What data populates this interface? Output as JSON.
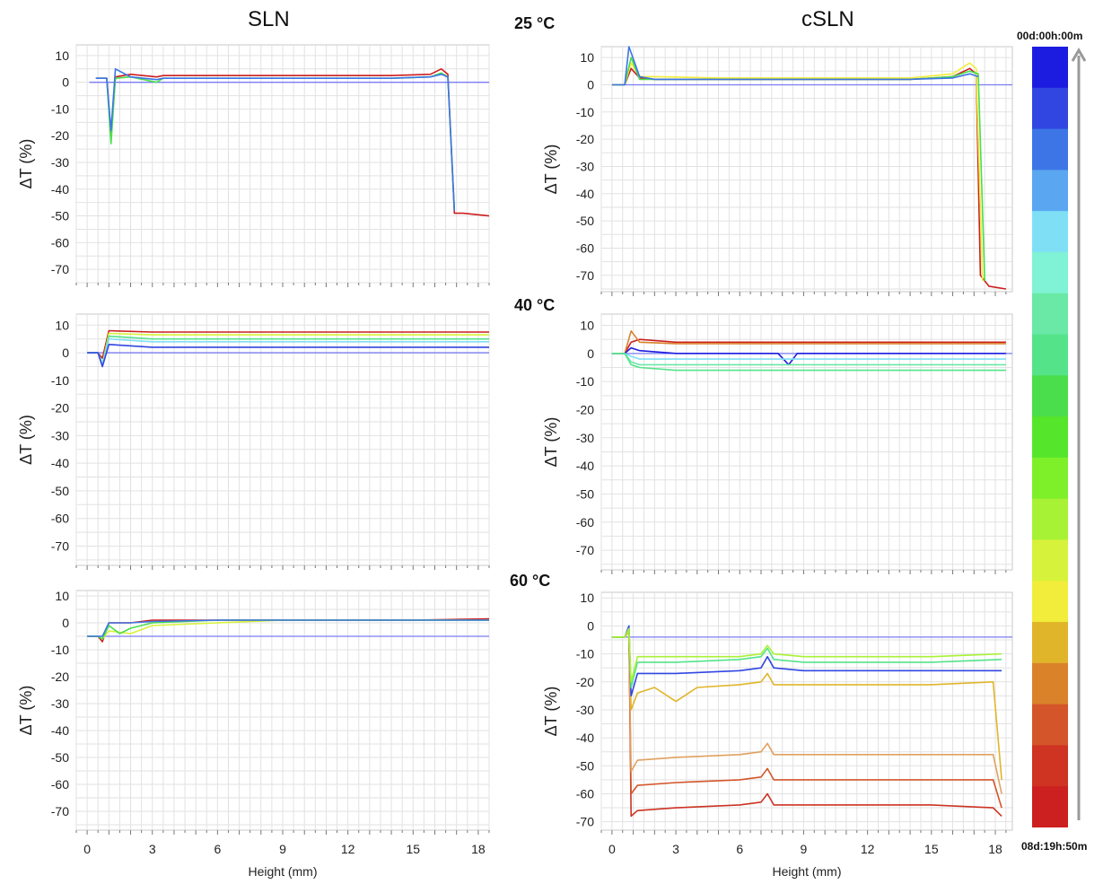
{
  "figure": {
    "column_titles": [
      "SLN",
      "cSLN"
    ],
    "temperatures": [
      "25 °C",
      "40 °C",
      "60 °C"
    ],
    "legend": {
      "top_label": "00d:00h:00m",
      "bottom_label": "08d:19h:50m",
      "colors": [
        "#1c1ce0",
        "#3146e0",
        "#3d75e6",
        "#5aa6f0",
        "#7fe0f5",
        "#80f2d5",
        "#6ae8a6",
        "#55e38a",
        "#4ade4c",
        "#55e62b",
        "#7ef02a",
        "#a8f235",
        "#d7f23a",
        "#f2ec3a",
        "#e0b52a",
        "#d9822a",
        "#d4552a",
        "#cf3322",
        "#cc1f1f"
      ]
    }
  },
  "chart_data": [
    {
      "type": "line",
      "panel": "SLN 25 °C",
      "xlabel": "",
      "ylabel": "ΔT (%)",
      "xlim": [
        -0.5,
        18.5
      ],
      "ylim": [
        -75,
        14
      ],
      "yticks": [
        10,
        0,
        -10,
        -20,
        -30,
        -40,
        -50,
        -60,
        -70
      ],
      "xticks": [],
      "baseline": 0,
      "series": [
        {
          "color": "#cc1f1f",
          "x": [
            0.4,
            0.9,
            1.1,
            1.3,
            2,
            3.2,
            3.5,
            5,
            8,
            11,
            14,
            15.8,
            16.3,
            16.6,
            16.9,
            17.3,
            18.5
          ],
          "y": [
            1.5,
            1.5,
            -20,
            2,
            3,
            2,
            2.5,
            2.5,
            2.5,
            2.5,
            2.5,
            3,
            5,
            3,
            -49,
            -49,
            -50
          ]
        },
        {
          "color": "#4ade4c",
          "x": [
            0.4,
            0.9,
            1.1,
            1.3,
            2,
            3.2,
            3.5,
            5,
            8,
            11,
            14,
            15.8,
            16.3,
            16.6,
            16.9
          ],
          "y": [
            1.5,
            1.5,
            -23,
            1.5,
            2,
            0,
            1.5,
            1.5,
            1.5,
            1.5,
            1.5,
            2,
            3.5,
            2,
            -48
          ]
        },
        {
          "color": "#3d75e6",
          "x": [
            0.4,
            0.9,
            1.1,
            1.3,
            2,
            3.2,
            3.5,
            5,
            8,
            11,
            14,
            15.8,
            16.3,
            16.6,
            16.9
          ],
          "y": [
            1.5,
            1.5,
            -18,
            5,
            2,
            1,
            1.5,
            1.5,
            1.5,
            1.5,
            1.5,
            2,
            3,
            2,
            -48
          ]
        }
      ]
    },
    {
      "type": "line",
      "panel": "cSLN 25 °C",
      "xlabel": "",
      "ylabel": "ΔT (%)",
      "xlim": [
        -0.5,
        18.8
      ],
      "ylim": [
        -76,
        14
      ],
      "yticks": [
        10,
        0,
        -10,
        -20,
        -30,
        -40,
        -50,
        -60,
        -70
      ],
      "xticks": [],
      "baseline": 0,
      "series": [
        {
          "color": "#cc1f1f",
          "x": [
            0,
            0.6,
            0.9,
            1.3,
            2,
            5,
            8,
            11,
            14,
            16,
            16.8,
            17.1,
            17.3,
            17.7,
            18.5
          ],
          "y": [
            0,
            0,
            6,
            2.5,
            2,
            2,
            2,
            2,
            2,
            3,
            6,
            4,
            -70,
            -74,
            -75
          ]
        },
        {
          "color": "#f2ec3a",
          "x": [
            0,
            0.6,
            0.9,
            1.3,
            2,
            5,
            8,
            11,
            14,
            16,
            16.8,
            17.1,
            17.4
          ],
          "y": [
            0,
            0,
            8,
            3,
            3,
            2.5,
            2.5,
            2.5,
            2.5,
            4,
            8,
            6,
            -72
          ]
        },
        {
          "color": "#4ade4c",
          "x": [
            0,
            0.6,
            0.9,
            1.3,
            2,
            5,
            8,
            11,
            14,
            16,
            16.8,
            17.2,
            17.5
          ],
          "y": [
            0,
            0,
            10,
            2,
            2,
            2,
            2,
            2,
            2,
            3,
            5,
            4,
            -72
          ]
        },
        {
          "color": "#3d75e6",
          "x": [
            0,
            0.6,
            0.8,
            1.3,
            2,
            5,
            8,
            11,
            14,
            16,
            16.8,
            17.2
          ],
          "y": [
            0,
            0,
            14,
            3,
            2,
            2,
            2,
            2,
            2,
            2.5,
            4,
            3
          ]
        }
      ]
    },
    {
      "type": "line",
      "panel": "SLN 40 °C",
      "xlabel": "",
      "ylabel": "ΔT (%)",
      "xlim": [
        -0.5,
        18.5
      ],
      "ylim": [
        -77,
        14
      ],
      "yticks": [
        10,
        0,
        -10,
        -20,
        -30,
        -40,
        -50,
        -60,
        -70
      ],
      "xticks": [],
      "baseline": 0,
      "series": [
        {
          "color": "#cc1f1f",
          "x": [
            0,
            0.5,
            0.7,
            1,
            3,
            6,
            9,
            12,
            15,
            18.5
          ],
          "y": [
            0,
            0,
            -2,
            8,
            7.5,
            7.5,
            7.5,
            7.5,
            7.5,
            7.5
          ]
        },
        {
          "color": "#d7f23a",
          "x": [
            0,
            0.5,
            0.7,
            1,
            3,
            6,
            9,
            12,
            15,
            18.5
          ],
          "y": [
            0,
            0,
            -4,
            7,
            6.5,
            6.5,
            6.5,
            6.5,
            6.5,
            6.5
          ]
        },
        {
          "color": "#55e38a",
          "x": [
            0,
            0.5,
            0.7,
            1,
            3,
            6,
            9,
            12,
            15,
            18.5
          ],
          "y": [
            0,
            0,
            -4,
            6,
            5,
            5,
            5,
            5,
            5,
            5
          ]
        },
        {
          "color": "#7fe0f5",
          "x": [
            0,
            0.5,
            0.7,
            1,
            3,
            6,
            9,
            12,
            15,
            18.5
          ],
          "y": [
            0,
            0,
            -4,
            5,
            4,
            4,
            4,
            4,
            4,
            4
          ]
        },
        {
          "color": "#3146e0",
          "x": [
            0,
            0.5,
            0.7,
            1,
            3,
            6,
            9,
            12,
            15,
            18.5
          ],
          "y": [
            0,
            0,
            -5,
            3,
            2,
            2,
            2,
            2,
            2,
            2
          ]
        }
      ]
    },
    {
      "type": "line",
      "panel": "cSLN 40 °C",
      "xlabel": "",
      "ylabel": "ΔT (%)",
      "xlim": [
        -0.5,
        18.8
      ],
      "ylim": [
        -77,
        14
      ],
      "yticks": [
        10,
        0,
        -10,
        -20,
        -30,
        -40,
        -50,
        -60,
        -70
      ],
      "xticks": [],
      "baseline": 0,
      "series": [
        {
          "color": "#cc1f1f",
          "x": [
            0,
            0.6,
            0.9,
            1.3,
            3,
            6,
            9,
            12,
            15,
            18.5
          ],
          "y": [
            0,
            0,
            4,
            5,
            4,
            4,
            4,
            4,
            4,
            4
          ]
        },
        {
          "color": "#d9822a",
          "x": [
            0,
            0.6,
            0.9,
            1.3,
            3,
            6,
            9,
            12,
            15,
            18.5
          ],
          "y": [
            0,
            0,
            8,
            4,
            3.5,
            3.5,
            3.5,
            3.5,
            3.5,
            3.5
          ]
        },
        {
          "color": "#1c1ce0",
          "x": [
            0,
            0.6,
            0.9,
            1.3,
            3,
            6,
            7.8,
            8.3,
            8.7,
            9,
            12,
            15,
            18.5
          ],
          "y": [
            0,
            0,
            2,
            1,
            0,
            0,
            0,
            -4,
            0,
            0,
            0,
            0,
            0
          ]
        },
        {
          "color": "#7fe0f5",
          "x": [
            0,
            0.6,
            0.9,
            1.3,
            3,
            6,
            9,
            12,
            15,
            18.5
          ],
          "y": [
            0,
            0,
            -1,
            -2,
            -2,
            -2,
            -2,
            -2,
            -2,
            -2
          ]
        },
        {
          "color": "#6ae8a6",
          "x": [
            0,
            0.6,
            0.9,
            1.3,
            3,
            6,
            9,
            12,
            15,
            18.5
          ],
          "y": [
            0,
            0,
            -3,
            -4,
            -4,
            -4,
            -4,
            -4,
            -4,
            -4
          ]
        },
        {
          "color": "#55e38a",
          "x": [
            0,
            0.6,
            0.9,
            1.3,
            3,
            6,
            9,
            12,
            15,
            18.5
          ],
          "y": [
            0,
            0,
            -4,
            -5,
            -6,
            -6,
            -6,
            -6,
            -6,
            -6
          ]
        }
      ]
    },
    {
      "type": "line",
      "panel": "SLN 60 °C",
      "xlabel": "Height (mm)",
      "ylabel": "ΔT (%)",
      "xlim": [
        -0.5,
        18.5
      ],
      "ylim": [
        -77,
        12
      ],
      "yticks": [
        10,
        0,
        -10,
        -20,
        -30,
        -40,
        -50,
        -60,
        -70
      ],
      "xticks": [
        0,
        3,
        6,
        9,
        12,
        15,
        18
      ],
      "baseline": -5,
      "series": [
        {
          "color": "#cc1f1f",
          "x": [
            0,
            0.5,
            0.7,
            1,
            2,
            3,
            6,
            9,
            12,
            15,
            18.5
          ],
          "y": [
            -5,
            -5,
            -7,
            0,
            0,
            1,
            1,
            1,
            1,
            1,
            1.5
          ]
        },
        {
          "color": "#d7f23a",
          "x": [
            0,
            0.5,
            0.7,
            1,
            2,
            3,
            6,
            9,
            12,
            15,
            18.5
          ],
          "y": [
            -5,
            -5,
            -6,
            -3,
            -4,
            -1,
            0,
            1,
            1,
            1,
            1
          ]
        },
        {
          "color": "#4ade4c",
          "x": [
            0,
            0.5,
            0.7,
            1,
            1.5,
            2,
            3,
            6,
            9,
            12,
            15,
            18.5
          ],
          "y": [
            -5,
            -5,
            -6,
            -1,
            -4,
            -2,
            0,
            1,
            1,
            1,
            1,
            1
          ]
        },
        {
          "color": "#3d75e6",
          "x": [
            0,
            0.5,
            0.7,
            1,
            2,
            3,
            6,
            9,
            12,
            15,
            18.5
          ],
          "y": [
            -5,
            -5,
            -5,
            0,
            0,
            0.5,
            1,
            1,
            1,
            1,
            1
          ]
        }
      ]
    },
    {
      "type": "line",
      "panel": "cSLN 60 °C",
      "xlabel": "Height (mm)",
      "ylabel": "ΔT (%)",
      "xlim": [
        -0.5,
        18.8
      ],
      "ylim": [
        -73,
        12
      ],
      "yticks": [
        10,
        0,
        -10,
        -20,
        -30,
        -40,
        -50,
        -60,
        -70
      ],
      "xticks": [
        0,
        3,
        6,
        9,
        12,
        15,
        18
      ],
      "baseline": -4,
      "series": [
        {
          "color": "#cc3322",
          "x": [
            0,
            0.6,
            0.8,
            0.9,
            1.2,
            3,
            6,
            7,
            7.3,
            7.6,
            9,
            12,
            15,
            17.9,
            18.3
          ],
          "y": [
            -4,
            -4,
            -2,
            -68,
            -66,
            -65,
            -64,
            -63,
            -60,
            -64,
            -64,
            -64,
            -64,
            -65,
            -68
          ]
        },
        {
          "color": "#d4552a",
          "x": [
            0,
            0.6,
            0.8,
            0.9,
            1.2,
            3,
            6,
            7,
            7.3,
            7.6,
            9,
            12,
            15,
            17.9,
            18.3
          ],
          "y": [
            -4,
            -4,
            -2,
            -60,
            -57,
            -56,
            -55,
            -54,
            -51,
            -55,
            -55,
            -55,
            -55,
            -55,
            -65
          ]
        },
        {
          "color": "#e0a060",
          "x": [
            0,
            0.6,
            0.8,
            0.9,
            1.2,
            3,
            6,
            7,
            7.3,
            7.6,
            9,
            12,
            15,
            17.9,
            18.3
          ],
          "y": [
            -4,
            -4,
            -2,
            -52,
            -48,
            -47,
            -46,
            -45,
            -42,
            -46,
            -46,
            -46,
            -46,
            -46,
            -60
          ]
        },
        {
          "color": "#e0b52a",
          "x": [
            0,
            0.6,
            0.8,
            0.9,
            1.2,
            2,
            3,
            4,
            6,
            7,
            7.3,
            7.6,
            9,
            12,
            15,
            17.9,
            18.3
          ],
          "y": [
            -4,
            -4,
            -2,
            -30,
            -24,
            -22,
            -27,
            -22,
            -21,
            -20,
            -17,
            -21,
            -21,
            -21,
            -21,
            -20,
            -55
          ]
        },
        {
          "color": "#3146e0",
          "x": [
            0,
            0.6,
            0.8,
            0.9,
            1.2,
            3,
            6,
            7,
            7.3,
            7.6,
            9,
            12,
            15,
            18.3
          ],
          "y": [
            -4,
            -4,
            0,
            -25,
            -17,
            -17,
            -16,
            -15,
            -11,
            -15,
            -16,
            -16,
            -16,
            -16
          ]
        },
        {
          "color": "#55e38a",
          "x": [
            0,
            0.6,
            0.8,
            0.9,
            1.2,
            3,
            6,
            7,
            7.3,
            7.6,
            9,
            12,
            15,
            18.3
          ],
          "y": [
            -4,
            -4,
            -1,
            -22,
            -13,
            -13,
            -12,
            -11,
            -8,
            -12,
            -13,
            -13,
            -13,
            -12
          ]
        },
        {
          "color": "#a8f235",
          "x": [
            0,
            0.6,
            0.8,
            0.9,
            1.2,
            3,
            6,
            7,
            7.3,
            7.6,
            9,
            12,
            15,
            18.3
          ],
          "y": [
            -4,
            -4,
            -1,
            -20,
            -11,
            -11,
            -11,
            -10,
            -7,
            -10,
            -11,
            -11,
            -11,
            -10
          ]
        }
      ]
    }
  ]
}
